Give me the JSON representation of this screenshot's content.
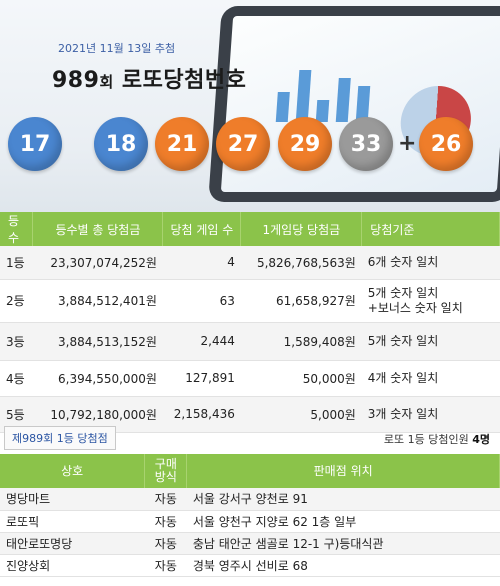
{
  "header": {
    "draw_date": "2021년 11월 13일 추첨",
    "round_number": "989",
    "round_suffix": "회",
    "title": " 로또당첨번호"
  },
  "balls": [
    {
      "number": "17",
      "color": "#4a86d0"
    },
    {
      "number": "18",
      "color": "#4a86d0"
    },
    {
      "number": "21",
      "color": "#ef7d2a"
    },
    {
      "number": "27",
      "color": "#ef7d2a"
    },
    {
      "number": "29",
      "color": "#ef7d2a"
    },
    {
      "number": "33",
      "color": "#9a9a9a"
    }
  ],
  "plus_sign": "+",
  "bonus_ball": {
    "number": "26",
    "color": "#ef7d2a"
  },
  "prize_table": {
    "headers": [
      "등수",
      "등수별 총 당첨금",
      "당첨 게임 수",
      "1게임당 당첨금",
      "당첨기준"
    ],
    "rows": [
      {
        "rank": "1등",
        "total": "23,307,074,252원",
        "games": "4",
        "per_game": "5,826,768,563원",
        "criteria": "6개 숫자 일치",
        "criteria2": ""
      },
      {
        "rank": "2등",
        "total": "3,884,512,401원",
        "games": "63",
        "per_game": "61,658,927원",
        "criteria": "5개 숫자 일치",
        "criteria2": "+보너스 숫자 일치"
      },
      {
        "rank": "3등",
        "total": "3,884,513,152원",
        "games": "2,444",
        "per_game": "1,589,408원",
        "criteria": "5개 숫자 일치",
        "criteria2": ""
      },
      {
        "rank": "4등",
        "total": "6,394,550,000원",
        "games": "127,891",
        "per_game": "50,000원",
        "criteria": "4개 숫자 일치",
        "criteria2": ""
      },
      {
        "rank": "5등",
        "total": "10,792,180,000원",
        "games": "2,158,436",
        "per_game": "5,000원",
        "criteria": "3개 숫자 일치",
        "criteria2": ""
      }
    ]
  },
  "winners": {
    "tab_label": "제989회 1등 당첨점",
    "count_label": "로또 1등 당첨인원 ",
    "count_value": "4명"
  },
  "store_table": {
    "headers": [
      "상호",
      "구매",
      "방식",
      "판매점 위치"
    ],
    "rows": [
      {
        "name": "명당마트",
        "method": "자동",
        "location": "서울 강서구 양천로 91"
      },
      {
        "name": "로또픽",
        "method": "자동",
        "location": "서울 양천구 지양로 62 1층 일부"
      },
      {
        "name": "태안로또명당",
        "method": "자동",
        "location": "충남 태안군 샘골로 12-1 구)등대식관"
      },
      {
        "name": "진양상회",
        "method": "자동",
        "location": "경북 영주시 선비로 68"
      }
    ]
  }
}
